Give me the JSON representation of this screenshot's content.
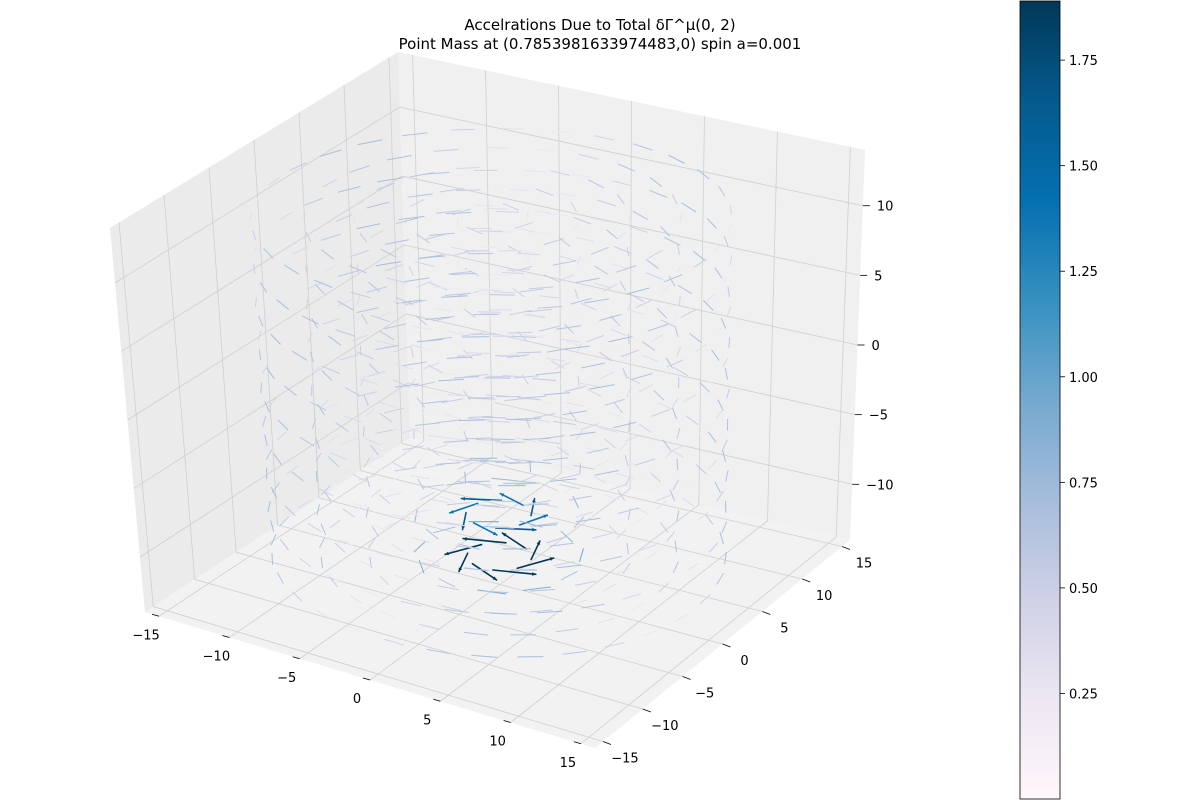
{
  "chart_data": {
    "type": "quiver3d",
    "title_line1": "Accelrations Due to Total δΓ^μ(0, 2)",
    "title_line2": "Point Mass at (0.7853981633974483,0) spin a=0.001",
    "xlim": [
      -16,
      16
    ],
    "ylim": [
      -16,
      16
    ],
    "zlim": [
      -14,
      14
    ],
    "x_ticks": [
      -15,
      -10,
      -5,
      0,
      5,
      10,
      15
    ],
    "y_ticks": [
      -15,
      -10,
      -5,
      0,
      5,
      10,
      15
    ],
    "z_ticks": [
      -10,
      -5,
      0,
      5,
      10
    ],
    "x_tick_labels": [
      "−15",
      "−10",
      "−5",
      "0",
      "5",
      "10",
      "15"
    ],
    "y_tick_labels": [
      "−15",
      "−10",
      "−5",
      "0",
      "5",
      "10",
      "15"
    ],
    "z_tick_labels": [
      "−10",
      "−5",
      "0",
      "5",
      "10"
    ],
    "grid": true,
    "colormap": "PuBu",
    "colorbar": {
      "min": 0.0,
      "max": 1.89,
      "ticks": [
        0.25,
        0.5,
        0.75,
        1.0,
        1.25,
        1.5,
        1.75
      ],
      "tick_labels": [
        "0.25",
        "0.50",
        "0.75",
        "1.00",
        "1.25",
        "1.50",
        "1.75"
      ]
    },
    "field": {
      "radii": [
        2,
        5,
        8,
        11,
        14
      ],
      "z_levels": [
        -12,
        -9,
        -6,
        -3,
        0,
        3,
        6,
        9,
        12
      ],
      "peak_magnitude": 1.89,
      "peak_z": -12
    }
  }
}
